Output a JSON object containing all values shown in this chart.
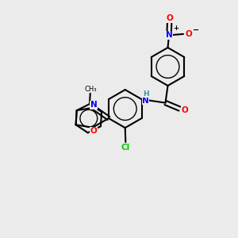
{
  "background_color": "#ebebeb",
  "bond_color": "#000000",
  "atom_colors": {
    "N": "#0000ff",
    "O": "#ff0000",
    "Cl": "#00cc00",
    "H": "#4a9090",
    "C": "#000000"
  },
  "bond_lw": 1.5,
  "ring_circle_lw": 1.0,
  "font_size": 7.5
}
